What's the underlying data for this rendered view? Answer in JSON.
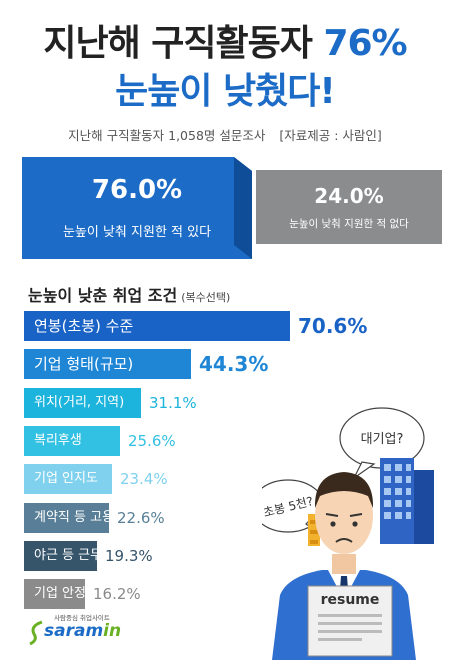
{
  "header": {
    "title_main": "지난해 구직활동자",
    "title_pct": "76%",
    "title_line2": "눈높이 낮췄다!",
    "subtitle": "지난해 구직활동자 1,058명 설문조사",
    "source": "[자료제공 : 사람인]"
  },
  "stats": {
    "yes": {
      "pct": "76.0%",
      "label": "눈높이 낮춰 지원한 적 있다",
      "color": "#1c6cc7"
    },
    "no": {
      "pct": "24.0%",
      "label": "눈높이 낮춰 지원한 적 없다",
      "color": "#8a8c8e"
    }
  },
  "conditions": {
    "title": "눈높이 낮춘 취업 조건",
    "note": "(복수선택)"
  },
  "illustration": {
    "bubble1": "대기업?",
    "bubble2": "초봉 5천?",
    "resume": "resume"
  },
  "logo": {
    "tagline": "사람중심 취업사이트",
    "brand_main": "saram",
    "brand_in": "in"
  },
  "chart_data": {
    "type": "bar",
    "title": "눈높이 낮춘 취업 조건",
    "subtitle": "(복수선택)",
    "categories": [
      "연봉(초봉) 수준",
      "기업 형태(규모)",
      "위치(거리, 지역)",
      "복리후생",
      "기업 인지도",
      "계약직 등 고용형태",
      "야근 등 근무환경",
      "기업 안정성"
    ],
    "values": [
      70.6,
      44.3,
      31.1,
      25.6,
      23.4,
      22.6,
      19.3,
      16.2
    ],
    "value_labels": [
      "70.6%",
      "44.3%",
      "31.1%",
      "25.6%",
      "23.4%",
      "22.6%",
      "19.3%",
      "16.2%"
    ],
    "bar_colors": [
      "#1a63c6",
      "#1f86d6",
      "#1cb4dc",
      "#33c1e3",
      "#7fd1ee",
      "#587f97",
      "#36546a",
      "#8b8b8b"
    ],
    "value_colors": [
      "#1a63c6",
      "#1f86d6",
      "#1cb4dc",
      "#33c1e3",
      "#7fd1ee",
      "#587f97",
      "#36546a",
      "#8b8b8b"
    ]
  }
}
